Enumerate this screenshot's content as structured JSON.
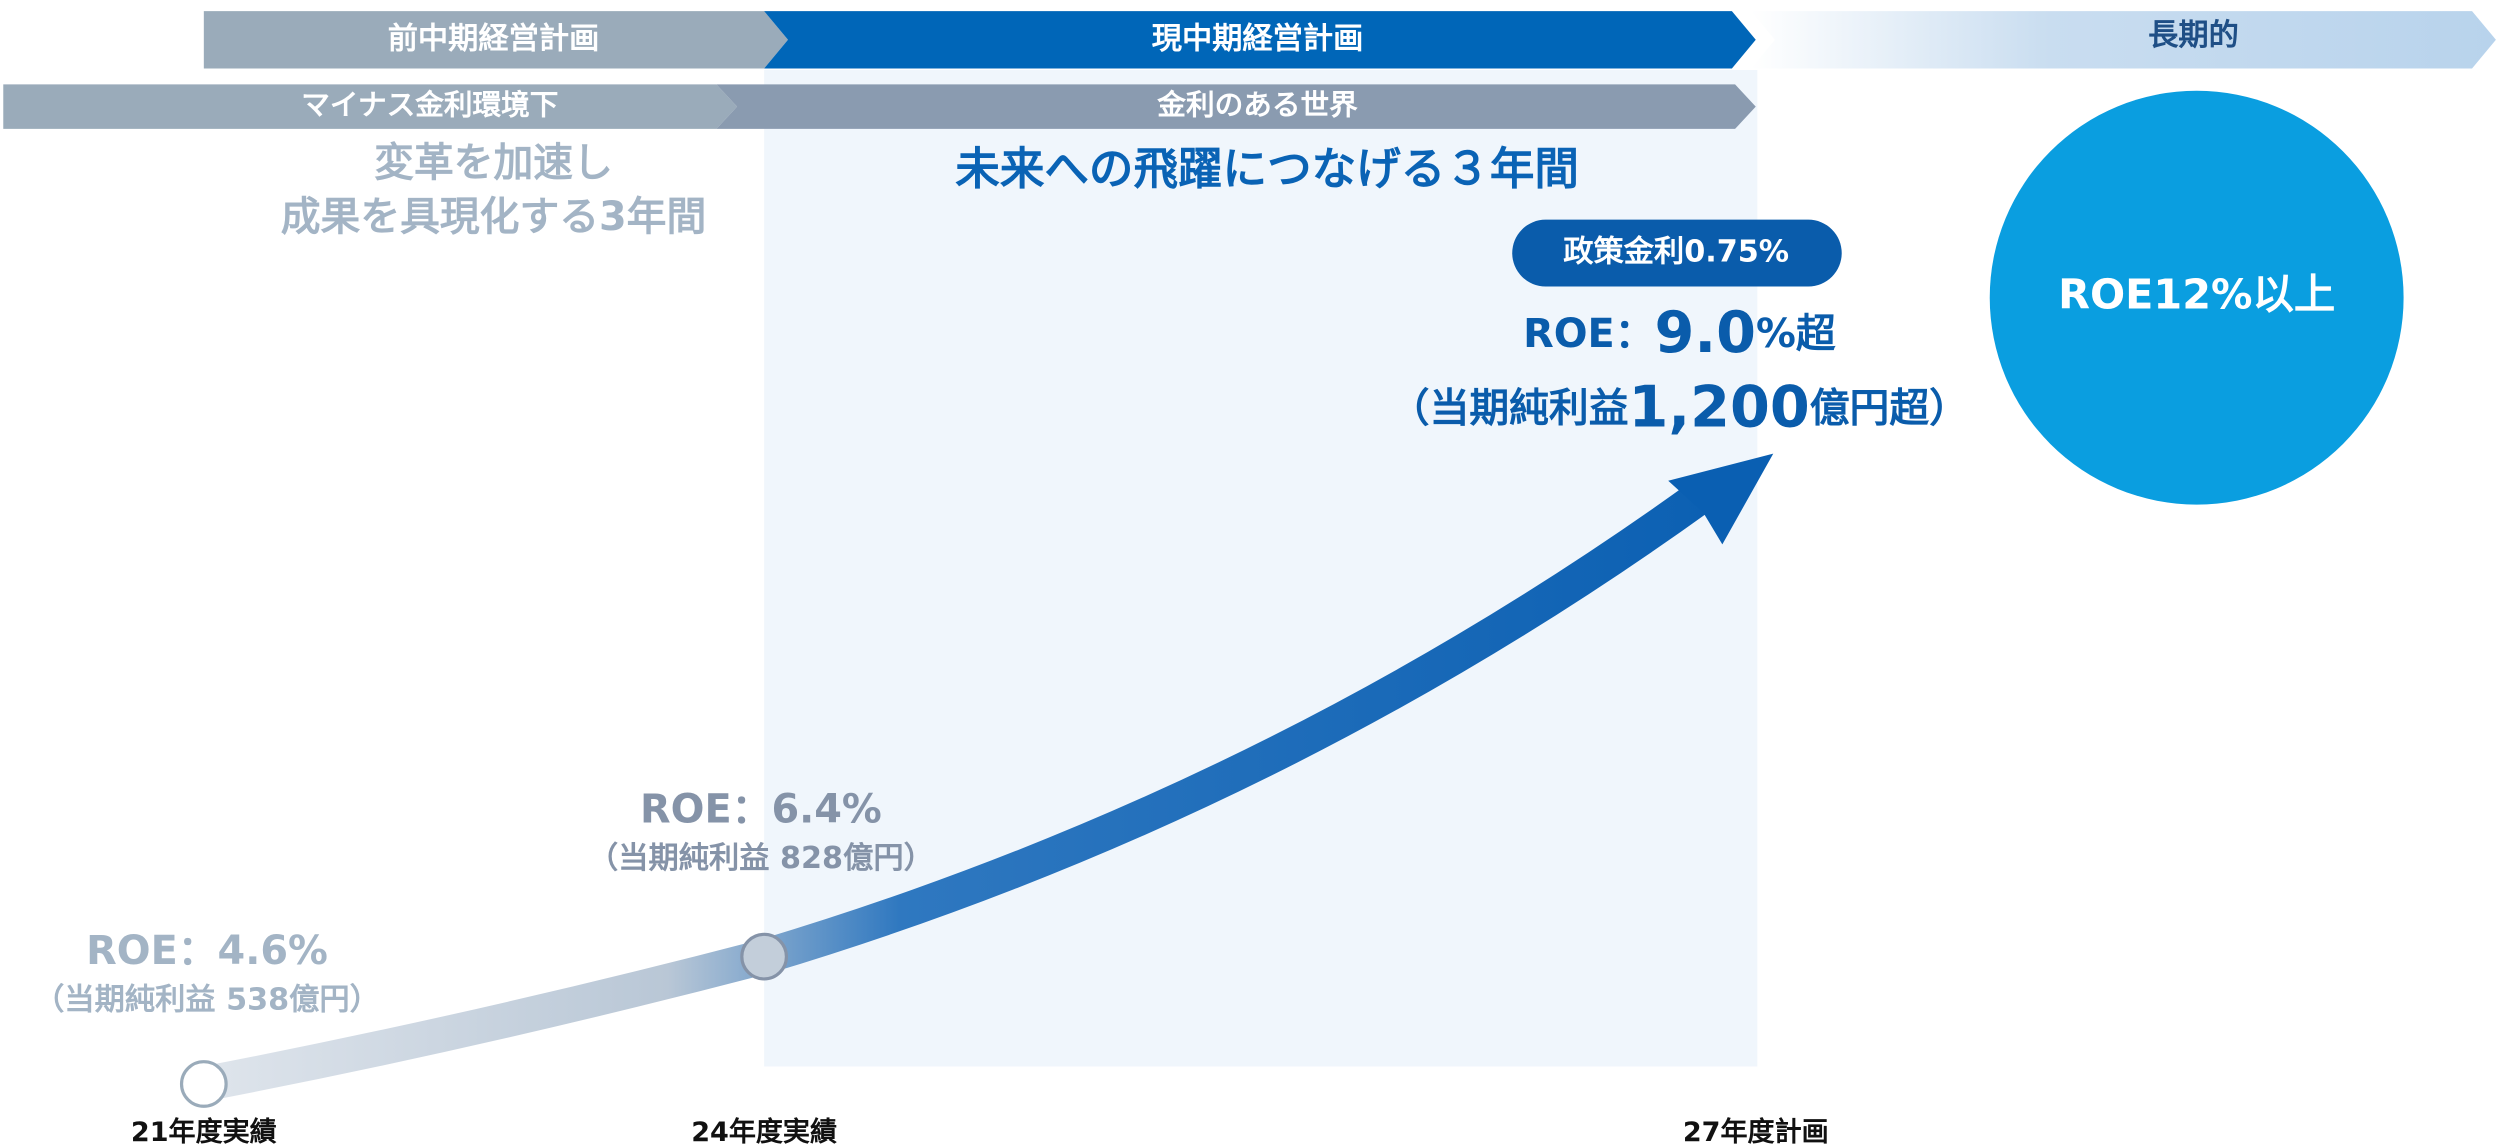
{
  "header_bars": {
    "previous_plan": "前中期経営計画",
    "current_plan": "現中期経営計画",
    "long_term": "長期的"
  },
  "environment": {
    "previous": "マイナス金利環境下",
    "current": "金利のある世界"
  },
  "previous_theme": [
    "変革を加速し",
    "成果を具現化する3年間"
  ],
  "current_theme": "未来への飛躍につなげる３年間",
  "policy_rate": "政策金利0.75%",
  "target": {
    "roe_prefix": "ROE：",
    "roe_value": "9.0",
    "roe_suffix": "%超",
    "income_prefix": "（当期純利益",
    "income_value": "1,200",
    "income_suffix": "億円超）"
  },
  "long_term_goal": "ROE12%以上",
  "points": [
    {
      "roe": "ROE：4.6%",
      "income": "（当期純利益 538億円）",
      "label": "21年度実績"
    },
    {
      "roe": "ROE：6.4%",
      "income": "（当期純利益 828億円）",
      "label": "24年度実績"
    },
    {
      "label": "27年度計画"
    }
  ]
}
